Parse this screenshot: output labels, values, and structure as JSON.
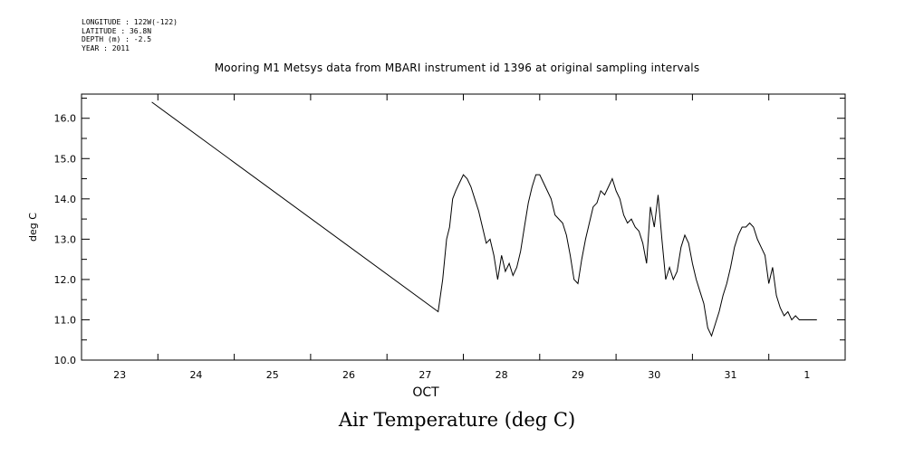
{
  "header": {
    "longitude": "LONGITUDE : 122W(-122)",
    "latitude": "LATITUDE : 36.8N",
    "depth": "DEPTH (m) : -2.5",
    "year": "YEAR : 2011"
  },
  "chart_data": {
    "type": "line",
    "title": "Mooring M1 Metsys data from MBARI instrument id 1396 at original sampling intervals",
    "bottom_title": "Air Temperature (deg C)",
    "ylabel": "deg C",
    "xlabel": "OCT",
    "xlim": [
      22.5,
      32.5
    ],
    "ylim": [
      10.0,
      16.6
    ],
    "x_tick_labels": [
      "23",
      "24",
      "25",
      "26",
      "27",
      "28",
      "29",
      "30",
      "31",
      "1"
    ],
    "y_tick_labels": [
      "10.0",
      "11.0",
      "12.0",
      "13.0",
      "14.0",
      "15.0",
      "16.0"
    ],
    "y_tick_values": [
      10.0,
      11.0,
      12.0,
      13.0,
      14.0,
      15.0,
      16.0
    ],
    "grid": false,
    "color": "#000000",
    "series": [
      {
        "x": [
          23.42,
          27.17,
          27.23,
          27.28,
          27.32,
          27.36,
          27.4,
          27.45,
          27.5,
          27.55,
          27.6,
          27.65,
          27.7,
          27.75,
          27.8,
          27.85,
          27.9,
          27.95,
          28.0,
          28.05,
          28.1,
          28.15,
          28.2,
          28.25,
          28.3,
          28.35,
          28.4,
          28.45,
          28.5,
          28.55,
          28.6,
          28.65,
          28.7,
          28.75,
          28.8,
          28.85,
          28.9,
          28.95,
          29.0,
          29.05,
          29.1,
          29.15,
          29.2,
          29.25,
          29.3,
          29.35,
          29.4,
          29.45,
          29.5,
          29.55,
          29.6,
          29.65,
          29.7,
          29.75,
          29.8,
          29.85,
          29.9,
          29.95,
          30.0,
          30.05,
          30.1,
          30.15,
          30.2,
          30.25,
          30.3,
          30.35,
          30.4,
          30.45,
          30.5,
          30.55,
          30.6,
          30.65,
          30.7,
          30.75,
          30.8,
          30.85,
          30.9,
          30.95,
          31.0,
          31.05,
          31.1,
          31.15,
          31.2,
          31.25,
          31.3,
          31.35,
          31.4,
          31.45,
          31.5,
          31.55,
          31.6,
          31.65,
          31.7,
          31.75,
          31.8,
          31.85,
          31.9,
          31.95,
          32.0,
          32.05,
          32.1,
          32.13
        ],
        "y": [
          16.4,
          11.2,
          12.0,
          13.0,
          13.3,
          14.0,
          14.2,
          14.4,
          14.6,
          14.5,
          14.3,
          14.0,
          13.7,
          13.3,
          12.9,
          13.0,
          12.6,
          12.0,
          12.6,
          12.2,
          12.4,
          12.1,
          12.3,
          12.7,
          13.3,
          13.9,
          14.3,
          14.6,
          14.6,
          14.4,
          14.2,
          14.0,
          13.6,
          13.5,
          13.4,
          13.1,
          12.6,
          12.0,
          11.9,
          12.5,
          13.0,
          13.4,
          13.8,
          13.9,
          14.2,
          14.1,
          14.3,
          14.5,
          14.2,
          14.0,
          13.6,
          13.4,
          13.5,
          13.3,
          13.2,
          12.9,
          12.4,
          13.8,
          13.3,
          14.1,
          13.0,
          12.0,
          12.3,
          12.0,
          12.2,
          12.8,
          13.1,
          12.9,
          12.4,
          12.0,
          11.7,
          11.4,
          10.8,
          10.6,
          10.9,
          11.2,
          11.6,
          11.9,
          12.3,
          12.8,
          13.1,
          13.3,
          13.3,
          13.4,
          13.3,
          13.0,
          12.8,
          12.6,
          11.9,
          12.3,
          11.6,
          11.3,
          11.1,
          11.2,
          11.0,
          11.1,
          11.0,
          11.0,
          11.0,
          11.0,
          11.0,
          11.0
        ]
      }
    ]
  }
}
